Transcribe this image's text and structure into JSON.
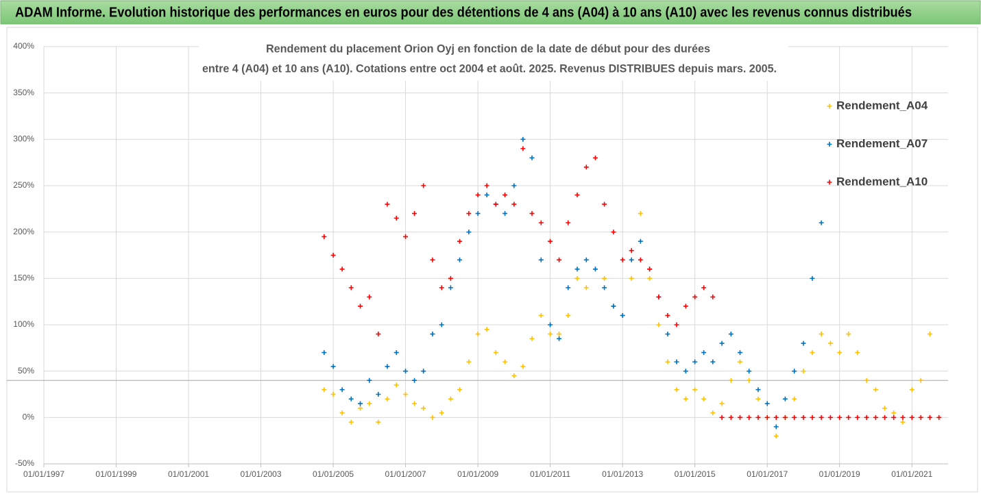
{
  "chart_data": {
    "type": "scatter",
    "header": "ADAM Informe. Evolution historique des performances en euros pour des détentions de 4 ans (A04) à 10 ans (A10) avec les revenus connus distribués",
    "title": [
      "Rendement du placement Orion Oyj en fonction de la date de début pour des durées",
      "entre 4 (A04) et 10 ans (A10). Cotations entre oct 2004 et août. 2025. Revenus DISTRIBUES depuis mars. 2005."
    ],
    "xlim": [
      "1997-01-01",
      "2022-01-01"
    ],
    "xticks": [
      {
        "value": "1997-01-01",
        "label": "01/01/1997"
      },
      {
        "value": "1999-01-01",
        "label": "01/01/1999"
      },
      {
        "value": "2001-01-01",
        "label": "01/01/2001"
      },
      {
        "value": "2003-01-01",
        "label": "01/01/2003"
      },
      {
        "value": "2005-01-01",
        "label": "01/01/2005"
      },
      {
        "value": "2007-01-01",
        "label": "01/01/2007"
      },
      {
        "value": "2009-01-01",
        "label": "01/01/2009"
      },
      {
        "value": "2011-01-01",
        "label": "01/01/2011"
      },
      {
        "value": "2013-01-01",
        "label": "01/01/2013"
      },
      {
        "value": "2015-01-01",
        "label": "01/01/2015"
      },
      {
        "value": "2017-01-01",
        "label": "01/01/2017"
      },
      {
        "value": "2019-01-01",
        "label": "01/01/2019"
      },
      {
        "value": "2021-01-01",
        "label": "01/01/2021"
      }
    ],
    "ylim": [
      -50,
      400
    ],
    "yticks": [
      {
        "value": -50,
        "label": "-50%"
      },
      {
        "value": 0,
        "label": "0%"
      },
      {
        "value": 50,
        "label": "50%"
      },
      {
        "value": 100,
        "label": "100%"
      },
      {
        "value": 150,
        "label": "150%"
      },
      {
        "value": 200,
        "label": "200%"
      },
      {
        "value": 250,
        "label": "250%"
      },
      {
        "value": 300,
        "label": "300%"
      },
      {
        "value": 350,
        "label": "350%"
      },
      {
        "value": 400,
        "label": "400%"
      }
    ],
    "reference_line": 40,
    "grid": true,
    "legend": "upper right",
    "series": [
      {
        "name": "Rendement_A04",
        "color": "#ffc000",
        "x": [
          "2004-10-01",
          "2005-01-01",
          "2005-04-01",
          "2005-07-01",
          "2005-10-01",
          "2006-01-01",
          "2006-04-01",
          "2006-07-01",
          "2006-10-01",
          "2007-01-01",
          "2007-04-01",
          "2007-07-01",
          "2007-10-01",
          "2008-01-01",
          "2008-04-01",
          "2008-07-01",
          "2008-10-01",
          "2009-01-01",
          "2009-04-01",
          "2009-07-01",
          "2009-10-01",
          "2010-01-01",
          "2010-04-01",
          "2010-07-01",
          "2010-10-01",
          "2011-01-01",
          "2011-04-01",
          "2011-07-01",
          "2011-10-01",
          "2012-01-01",
          "2012-04-01",
          "2012-07-01",
          "2012-10-01",
          "2013-01-01",
          "2013-04-01",
          "2013-07-01",
          "2013-10-01",
          "2014-01-01",
          "2014-04-01",
          "2014-07-01",
          "2014-10-01",
          "2015-01-01",
          "2015-04-01",
          "2015-07-01",
          "2015-10-01",
          "2016-01-01",
          "2016-04-01",
          "2016-07-01",
          "2016-10-01",
          "2017-01-01",
          "2017-04-01",
          "2017-07-01",
          "2017-10-01",
          "2018-01-01",
          "2018-04-01",
          "2018-07-01",
          "2018-10-01",
          "2019-01-01",
          "2019-04-01",
          "2019-07-01",
          "2019-10-01",
          "2020-01-01",
          "2020-04-01",
          "2020-07-01",
          "2020-10-01",
          "2021-01-01",
          "2021-04-01",
          "2021-07-01"
        ],
        "values": [
          30,
          25,
          5,
          -5,
          10,
          15,
          -5,
          20,
          35,
          25,
          15,
          10,
          0,
          5,
          20,
          30,
          60,
          90,
          95,
          70,
          60,
          45,
          55,
          85,
          110,
          90,
          90,
          110,
          150,
          140,
          160,
          150,
          120,
          110,
          150,
          220,
          150,
          100,
          60,
          30,
          20,
          30,
          20,
          5,
          15,
          40,
          60,
          40,
          20,
          0,
          -20,
          0,
          20,
          50,
          70,
          90,
          80,
          70,
          90,
          70,
          40,
          30,
          10,
          5,
          -5,
          30,
          40,
          90
        ]
      },
      {
        "name": "Rendement_A07",
        "color": "#0070c0",
        "x": [
          "2004-10-01",
          "2005-01-01",
          "2005-04-01",
          "2005-07-01",
          "2005-10-01",
          "2006-01-01",
          "2006-04-01",
          "2006-07-01",
          "2006-10-01",
          "2007-01-01",
          "2007-04-01",
          "2007-07-01",
          "2007-10-01",
          "2008-01-01",
          "2008-04-01",
          "2008-07-01",
          "2008-10-01",
          "2009-01-01",
          "2009-04-01",
          "2009-07-01",
          "2009-10-01",
          "2010-01-01",
          "2010-04-01",
          "2010-07-01",
          "2010-10-01",
          "2011-01-01",
          "2011-04-01",
          "2011-07-01",
          "2011-10-01",
          "2012-01-01",
          "2012-04-01",
          "2012-07-01",
          "2012-10-01",
          "2013-01-01",
          "2013-04-01",
          "2013-07-01",
          "2013-10-01",
          "2014-01-01",
          "2014-04-01",
          "2014-07-01",
          "2014-10-01",
          "2015-01-01",
          "2015-04-01",
          "2015-07-01",
          "2015-10-01",
          "2016-01-01",
          "2016-04-01",
          "2016-07-01",
          "2016-10-01",
          "2017-01-01",
          "2017-04-01",
          "2017-07-01",
          "2017-10-01",
          "2018-01-01",
          "2018-04-01",
          "2018-07-01"
        ],
        "values": [
          70,
          55,
          30,
          20,
          15,
          40,
          25,
          55,
          70,
          50,
          40,
          50,
          90,
          100,
          140,
          170,
          200,
          220,
          240,
          230,
          220,
          250,
          300,
          280,
          170,
          100,
          85,
          140,
          160,
          170,
          160,
          140,
          120,
          110,
          170,
          190,
          160,
          130,
          90,
          60,
          50,
          60,
          70,
          60,
          80,
          90,
          70,
          50,
          30,
          15,
          -10,
          20,
          50,
          80,
          150,
          210
        ]
      },
      {
        "name": "Rendement_A10",
        "color": "#ff0000",
        "x": [
          "2004-10-01",
          "2005-01-01",
          "2005-04-01",
          "2005-07-01",
          "2005-10-01",
          "2006-01-01",
          "2006-04-01",
          "2006-07-01",
          "2006-10-01",
          "2007-01-01",
          "2007-04-01",
          "2007-07-01",
          "2007-10-01",
          "2008-01-01",
          "2008-04-01",
          "2008-07-01",
          "2008-10-01",
          "2009-01-01",
          "2009-04-01",
          "2009-07-01",
          "2009-10-01",
          "2010-01-01",
          "2010-04-01",
          "2010-07-01",
          "2010-10-01",
          "2011-01-01",
          "2011-04-01",
          "2011-07-01",
          "2011-10-01",
          "2012-01-01",
          "2012-04-01",
          "2012-07-01",
          "2012-10-01",
          "2013-01-01",
          "2013-04-01",
          "2013-07-01",
          "2013-10-01",
          "2014-01-01",
          "2014-04-01",
          "2014-07-01",
          "2014-10-01",
          "2015-01-01",
          "2015-04-01",
          "2015-07-01",
          "2015-10-01",
          "2016-01-01",
          "2016-04-01",
          "2016-07-01",
          "2016-10-01",
          "2017-01-01",
          "2017-04-01",
          "2017-07-01",
          "2017-10-01",
          "2018-01-01",
          "2018-04-01",
          "2018-07-01",
          "2018-10-01",
          "2019-01-01",
          "2019-04-01",
          "2019-07-01",
          "2019-10-01",
          "2020-01-01",
          "2020-04-01",
          "2020-07-01",
          "2020-10-01",
          "2021-01-01",
          "2021-04-01",
          "2021-07-01",
          "2021-10-01"
        ],
        "values": [
          195,
          175,
          160,
          140,
          120,
          130,
          90,
          230,
          215,
          195,
          220,
          250,
          170,
          140,
          150,
          190,
          220,
          240,
          250,
          230,
          240,
          230,
          290,
          220,
          210,
          190,
          170,
          210,
          240,
          270,
          280,
          230,
          200,
          170,
          180,
          170,
          160,
          130,
          110,
          100,
          120,
          130,
          140,
          130,
          0,
          0,
          0,
          0,
          0,
          0,
          0,
          0,
          0,
          0,
          0,
          0,
          0,
          0,
          0,
          0,
          0,
          0,
          0,
          0,
          0,
          0,
          0,
          0,
          0
        ]
      }
    ]
  }
}
